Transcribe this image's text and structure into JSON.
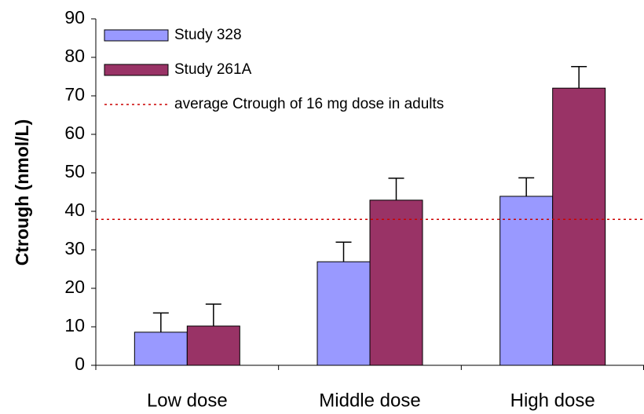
{
  "chart_data": {
    "type": "bar",
    "y_label": "Ctrough (nmol/L)",
    "categories": [
      "Low dose",
      "Middle dose",
      "High dose"
    ],
    "series": [
      {
        "name": "Study 328",
        "color": "#9999ff",
        "values": [
          8.6,
          26.9,
          43.9
        ],
        "errors": [
          5,
          5.1,
          4.8
        ]
      },
      {
        "name": "Study 261A",
        "color": "#993366",
        "values": [
          10.2,
          42.9,
          72
        ],
        "errors": [
          5.7,
          5.7,
          5.6
        ]
      }
    ],
    "reference_line": {
      "name": "average Ctrough of 16 mg dose in adults",
      "value": 37.9,
      "color": "#cc0000"
    },
    "ylim": [
      0,
      90
    ],
    "yticks": [
      0,
      10,
      20,
      30,
      40,
      50,
      60,
      70,
      80,
      90
    ],
    "legend": "top-left"
  }
}
